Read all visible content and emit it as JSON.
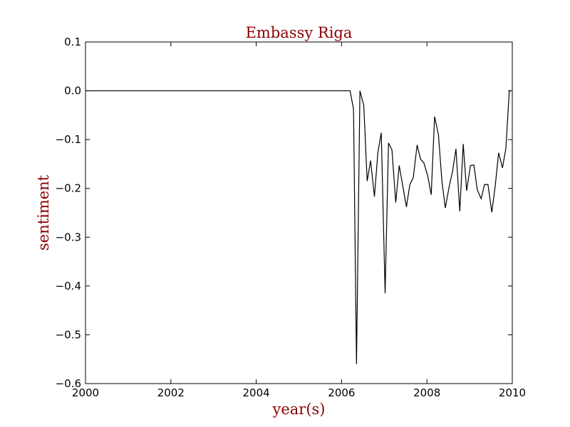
{
  "chart_data": {
    "type": "line",
    "title": "Embassy Riga",
    "xlabel": "year(s)",
    "ylabel": "sentiment",
    "xlim": [
      2000,
      2010
    ],
    "ylim": [
      -0.6,
      0.1
    ],
    "xticks": [
      2000,
      2002,
      2004,
      2006,
      2008,
      2010
    ],
    "xtick_labels": [
      "2000",
      "2002",
      "2004",
      "2006",
      "2008",
      "2010"
    ],
    "yticks": [
      0.1,
      0.0,
      -0.1,
      -0.2,
      -0.3,
      -0.4,
      -0.5,
      -0.6
    ],
    "ytick_labels": [
      "0.1",
      "0.0",
      "−0.1",
      "−0.2",
      "−0.3",
      "−0.4",
      "−0.5",
      "−0.6"
    ],
    "grid": false,
    "colors": {
      "line": "#000000",
      "title": "#8b0000",
      "axis_label": "#8b0000"
    },
    "series": [
      {
        "x": [
          2000.0,
          2006.2,
          2006.28,
          2006.35,
          2006.43,
          2006.52,
          2006.6,
          2006.68,
          2006.77,
          2006.85,
          2006.93,
          2007.02,
          2007.1,
          2007.18,
          2007.27,
          2007.35,
          2007.43,
          2007.52,
          2007.6,
          2007.68,
          2007.77,
          2007.85,
          2007.93,
          2008.02,
          2008.1,
          2008.18,
          2008.27,
          2008.35,
          2008.43,
          2008.52,
          2008.6,
          2008.68,
          2008.77,
          2008.85,
          2008.93,
          2009.02,
          2009.1,
          2009.18,
          2009.27,
          2009.35,
          2009.43,
          2009.52,
          2009.6,
          2009.68,
          2009.77,
          2009.85,
          2009.93,
          2010.0
        ],
        "y": [
          0.0,
          0.0,
          -0.038,
          -0.56,
          0.0,
          -0.03,
          -0.185,
          -0.143,
          -0.217,
          -0.127,
          -0.086,
          -0.415,
          -0.107,
          -0.121,
          -0.229,
          -0.153,
          -0.193,
          -0.238,
          -0.192,
          -0.178,
          -0.111,
          -0.14,
          -0.148,
          -0.175,
          -0.213,
          -0.053,
          -0.09,
          -0.184,
          -0.24,
          -0.197,
          -0.165,
          -0.119,
          -0.247,
          -0.109,
          -0.205,
          -0.153,
          -0.152,
          -0.203,
          -0.221,
          -0.192,
          -0.192,
          -0.249,
          -0.195,
          -0.127,
          -0.158,
          -0.118,
          0.0,
          0.0
        ]
      }
    ]
  }
}
